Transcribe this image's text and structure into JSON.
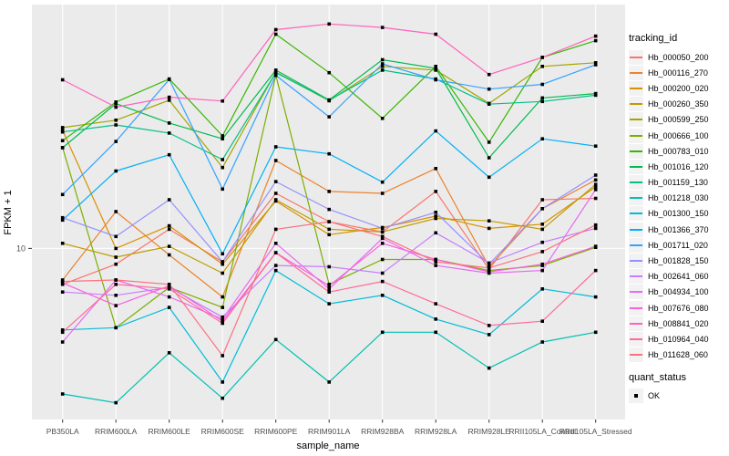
{
  "legend": {
    "tracking_title": "tracking_id",
    "quant_title": "quant_status",
    "quant_items": [
      {
        "label": "OK",
        "marker": "black-square"
      }
    ]
  },
  "chart_data": {
    "type": "line",
    "title": "",
    "xlabel": "sample_name",
    "ylabel": "FPKM + 1",
    "yscale": "log10",
    "y_ticks": [
      10
    ],
    "ylim": [
      1.96,
      102
    ],
    "grid": "major",
    "legend_position": "right",
    "panel_bg": "#EBEBEB",
    "grid_color": "#FFFFFF",
    "tick_label_color": "#4D4D4D",
    "point_marker": "black-square",
    "x": [
      "PB350LA",
      "RRIM600LA",
      "RRIM600LE",
      "RRIM600SE",
      "RRIM600PE",
      "RRIM901LA",
      "RRIM928BA",
      "RRIM928LA",
      "RRIM928LE",
      "RRII105LA_Control",
      "RRII105LA_Stressed"
    ],
    "series": [
      {
        "name": "Hb_000050_200",
        "color": "#F8766D",
        "values": [
          7.1,
          8.6,
          12.0,
          8.8,
          16.9,
          12.9,
          11.7,
          17.2,
          8.2,
          15.9,
          16.1
        ]
      },
      {
        "name": "Hb_000116_270",
        "color": "#EA8331",
        "values": [
          7.4,
          14.2,
          9.4,
          6.3,
          23.1,
          17.2,
          16.9,
          21.4,
          8.4,
          14.6,
          19.2
        ]
      },
      {
        "name": "Hb_000200_020",
        "color": "#D89000",
        "values": [
          30.8,
          10.0,
          12.4,
          8.6,
          15.7,
          11.4,
          12.2,
          13.6,
          12.1,
          12.6,
          18.0
        ]
      },
      {
        "name": "Hb_000260_350",
        "color": "#C09B00",
        "values": [
          10.5,
          9.2,
          10.2,
          7.9,
          15.9,
          12.0,
          11.7,
          13.3,
          13.0,
          12.0,
          18.4
        ]
      },
      {
        "name": "Hb_000599_250",
        "color": "#A3A500",
        "values": [
          31.6,
          33.9,
          41.0,
          21.6,
          53.6,
          40.8,
          56.6,
          54.6,
          39.8,
          56.6,
          58.6
        ]
      },
      {
        "name": "Hb_000666_100",
        "color": "#7CAE00",
        "values": [
          26.1,
          4.7,
          6.9,
          5.7,
          52.0,
          7.1,
          9.0,
          9.0,
          8.1,
          8.5,
          10.1
        ]
      },
      {
        "name": "Hb_000783_010",
        "color": "#39B600",
        "values": [
          27.9,
          40.3,
          50.2,
          29.2,
          76.9,
          53.3,
          34.5,
          56.6,
          27.5,
          61.7,
          72.3
        ]
      },
      {
        "name": "Hb_001016_120",
        "color": "#00BB4E",
        "values": [
          26.1,
          39.7,
          33.0,
          28.4,
          54.6,
          41.1,
          60.3,
          55.6,
          23.7,
          41.9,
          43.7
        ]
      },
      {
        "name": "Hb_001159_130",
        "color": "#00C087",
        "values": [
          30.3,
          32.4,
          30.0,
          23.3,
          53.3,
          41.0,
          54.6,
          50.2,
          39.5,
          40.5,
          43.0
        ]
      },
      {
        "name": "Hb_001218_030",
        "color": "#00C0B2",
        "values": [
          2.5,
          2.3,
          3.7,
          2.4,
          4.2,
          2.8,
          4.5,
          4.5,
          3.2,
          4.1,
          4.5
        ]
      },
      {
        "name": "Hb_001300_150",
        "color": "#00BCD8",
        "values": [
          4.6,
          4.7,
          5.7,
          2.8,
          8.1,
          5.9,
          6.4,
          5.1,
          4.4,
          6.8,
          6.3
        ]
      },
      {
        "name": "Hb_001366_370",
        "color": "#00B0F6",
        "values": [
          13.1,
          20.9,
          24.4,
          9.5,
          26.3,
          24.6,
          18.8,
          30.6,
          19.7,
          28.4,
          26.5
        ]
      },
      {
        "name": "Hb_001711_020",
        "color": "#35A2FF",
        "values": [
          16.7,
          27.7,
          50.0,
          17.6,
          52.0,
          35.0,
          58.0,
          49.8,
          45.6,
          47.7,
          57.5
        ]
      },
      {
        "name": "Hb_001828_150",
        "color": "#9590FF",
        "values": [
          13.4,
          11.2,
          15.9,
          8.8,
          18.9,
          14.5,
          12.1,
          14.1,
          8.6,
          14.6,
          20.1
        ]
      },
      {
        "name": "Hb_002641_060",
        "color": "#C77CFF",
        "values": [
          6.6,
          6.4,
          6.9,
          5.2,
          8.5,
          8.4,
          7.9,
          11.6,
          8.7,
          10.6,
          12.1
        ]
      },
      {
        "name": "Hb_004934_100",
        "color": "#E76BF3",
        "values": [
          4.1,
          7.4,
          6.3,
          5.1,
          10.5,
          6.8,
          11.0,
          8.5,
          7.9,
          8.1,
          17.5
        ]
      },
      {
        "name": "Hb_007676_080",
        "color": "#FA62DB",
        "values": [
          7.2,
          5.8,
          7.0,
          5.0,
          9.6,
          7.0,
          10.5,
          9.0,
          8.0,
          8.6,
          10.2
        ]
      },
      {
        "name": "Hb_008841_020",
        "color": "#FF62BC",
        "values": [
          49.8,
          38.4,
          42.2,
          40.7,
          80.3,
          84.8,
          82.0,
          76.9,
          52.4,
          61.7,
          75.5
        ]
      },
      {
        "name": "Hb_010964_040",
        "color": "#FF6A98",
        "values": [
          4.5,
          7.1,
          6.8,
          4.9,
          9.6,
          6.6,
          7.3,
          5.9,
          4.8,
          5.0,
          8.1
        ]
      },
      {
        "name": "Hb_011628_060",
        "color": "#FC717F",
        "values": [
          7.3,
          7.4,
          7.1,
          3.6,
          12.0,
          12.9,
          11.2,
          8.8,
          8.3,
          9.7,
          12.5
        ]
      }
    ]
  }
}
